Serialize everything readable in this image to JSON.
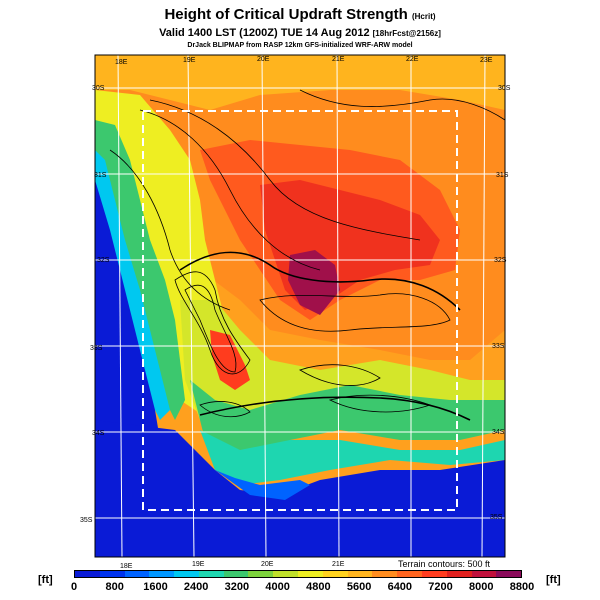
{
  "header": {
    "title": "Height of Critical Updraft Strength",
    "title_suffix": "(Hcrit)",
    "valid": "Valid 1400 LST (1200Z) TUE 14 Aug 2012",
    "valid_suffix": "[18hrFcst@2156z]",
    "credit": "DrJack BLIPMAP from RASP 12km GFS-initialized WRF-ARW model"
  },
  "map": {
    "lon_top": [
      "18E",
      "19E",
      "20E",
      "21E",
      "22E",
      "23E"
    ],
    "lon_bottom": [
      "18E",
      "19E",
      "20E",
      "21E"
    ],
    "lat_left": [
      "30S",
      "31S",
      "32S",
      "33S",
      "34S",
      "35S"
    ],
    "lat_right": [
      "30S",
      "31S",
      "32S",
      "33S",
      "34S",
      "35S"
    ],
    "terrain_note": "Terrain contours: 500 ft"
  },
  "colorbar": {
    "unit_left": "[ft]",
    "unit_right": "[ft]",
    "ticks": [
      "0",
      "800",
      "1600",
      "2400",
      "3200",
      "4000",
      "4800",
      "5600",
      "6400",
      "7200",
      "8000",
      "8800"
    ],
    "colors": [
      "#0a1bd6",
      "#0033ee",
      "#0063ff",
      "#0097ff",
      "#00c8f0",
      "#1ed6b0",
      "#3cc86e",
      "#7dd23c",
      "#c0e02a",
      "#eeee22",
      "#ffd21e",
      "#ffb41e",
      "#ff8c1e",
      "#ff641e",
      "#ff3c1e",
      "#e0201e",
      "#c0103c",
      "#8a0a5a"
    ]
  },
  "colors": {
    "ocean": "#0a1bd6",
    "frame": "#000000",
    "grid": "#ffffff"
  }
}
